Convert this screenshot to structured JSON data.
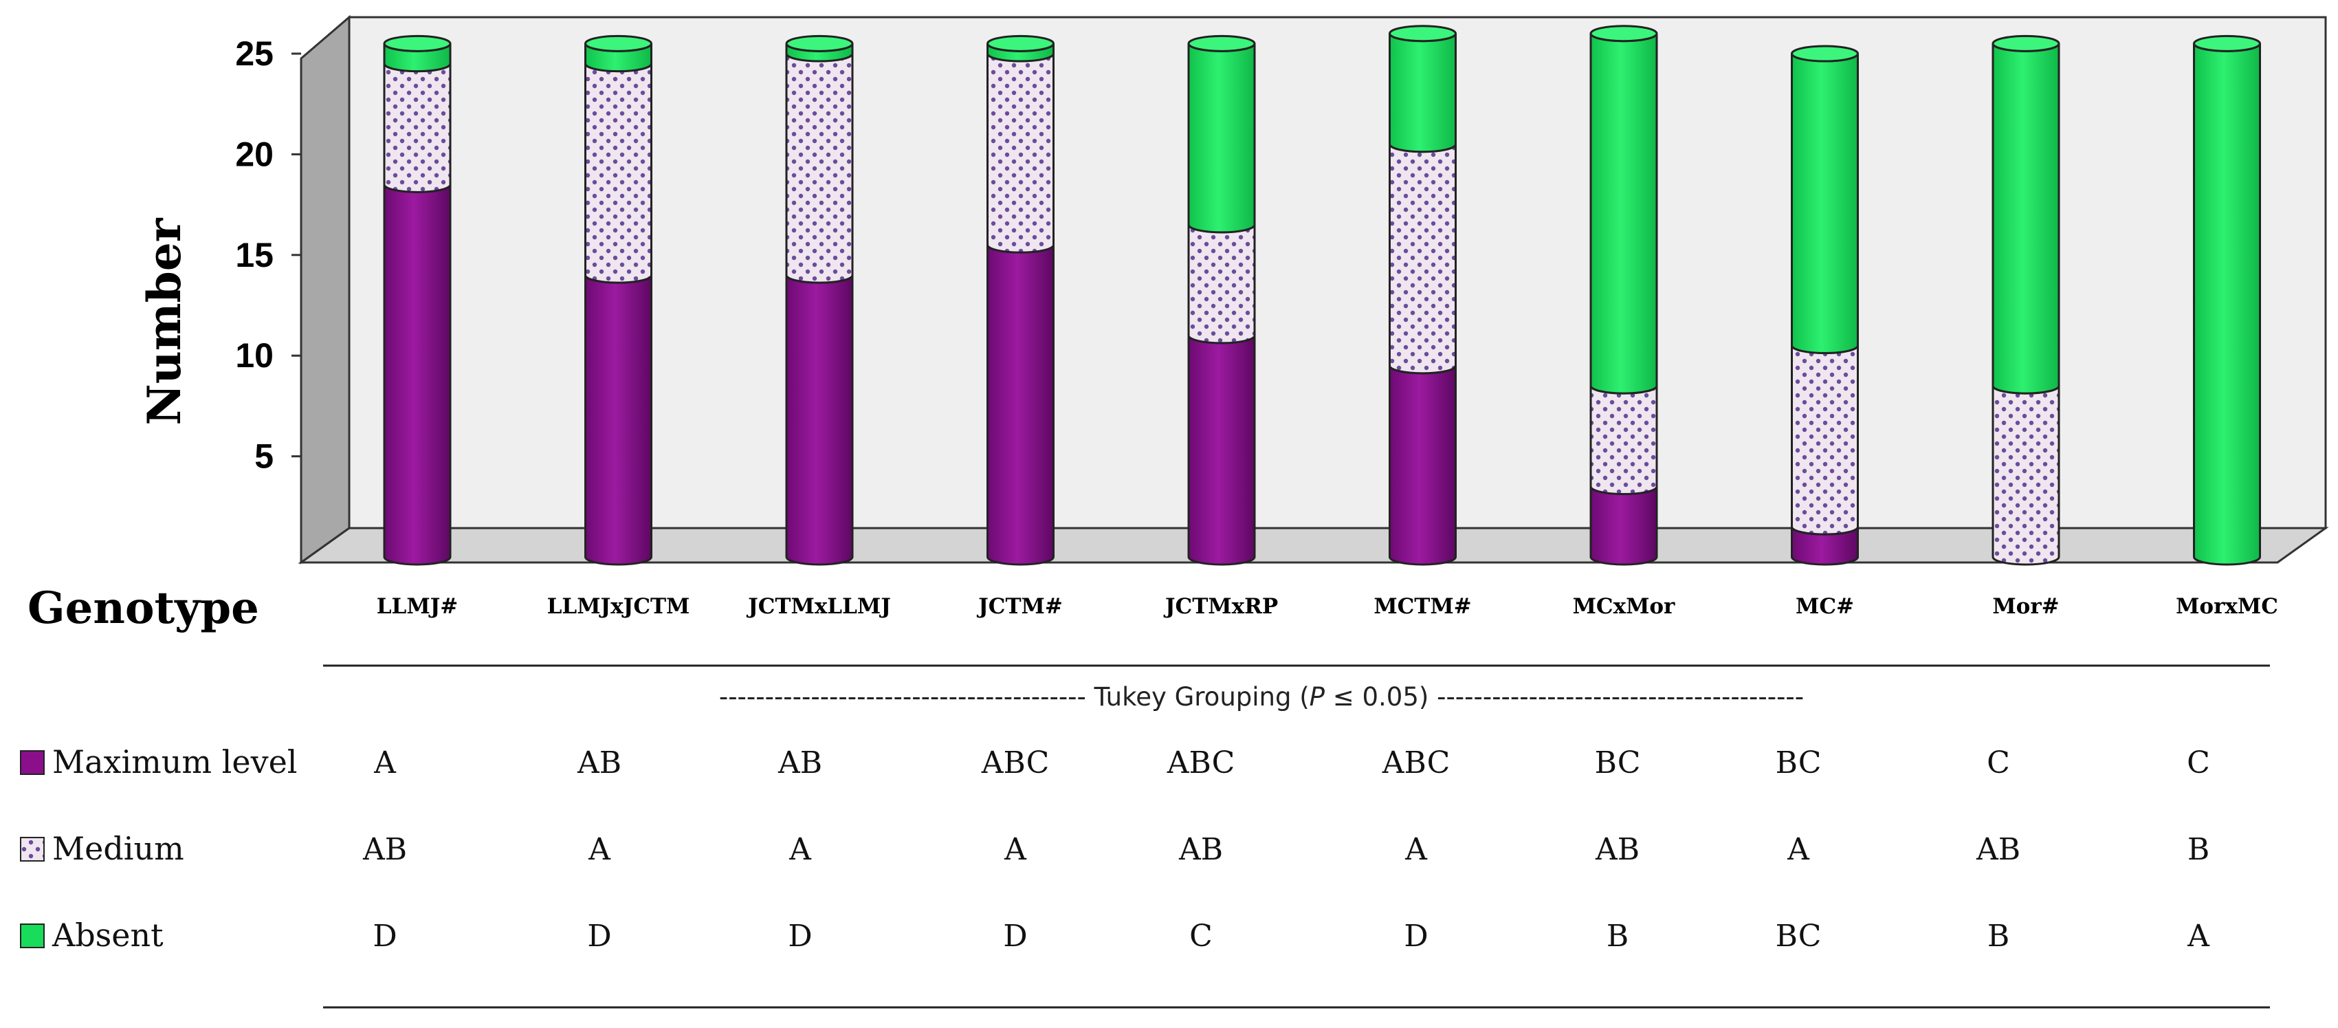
{
  "chart_data": {
    "type": "bar",
    "stacked": true,
    "ylabel": "Number",
    "xlabel": "Genotype",
    "ylim": [
      0,
      25
    ],
    "yticks": [
      "5",
      "10",
      "15",
      "20",
      "25"
    ],
    "categories": [
      "LLMJ#",
      "LLMJxJCTM",
      "JCTMxLLMJ",
      "JCTM#",
      "JCTMxRP",
      "MCTM#",
      "MCxMor",
      "MC#",
      "Mor#",
      "MorxMC"
    ],
    "series": [
      {
        "name": "Maximum level",
        "color": "#8b0f8b",
        "values": [
          18.5,
          14,
          14,
          15.5,
          11,
          9.5,
          3.5,
          1.5,
          0,
          0
        ]
      },
      {
        "name": "Medium",
        "color": "#efe6f0",
        "values": [
          6,
          10.5,
          11,
          9.5,
          5.5,
          11,
          5,
          9,
          8.5,
          0
        ]
      },
      {
        "name": "Absent",
        "color": "#18dc5a",
        "values": [
          1,
          1,
          0.5,
          0.5,
          9,
          5.5,
          17.5,
          14.5,
          17,
          25.5
        ]
      }
    ]
  },
  "tukey": {
    "title_prefix": "---------------------------------------- Tukey Grouping (",
    "title_p": "P",
    "title_suffix": " ≤ 0.05) ----------------------------------------",
    "rows": [
      {
        "label": "Maximum level",
        "groups": [
          "A",
          "AB",
          "AB",
          "ABC",
          "ABC",
          "ABC",
          "BC",
          "BC",
          "C",
          "C"
        ]
      },
      {
        "label": "Medium",
        "groups": [
          "AB",
          "A",
          "A",
          "A",
          "AB",
          "A",
          "AB",
          "A",
          "AB",
          "B"
        ]
      },
      {
        "label": "Absent",
        "groups": [
          "D",
          "D",
          "D",
          "D",
          "C",
          "D",
          "B",
          "BC",
          "B",
          "A"
        ]
      }
    ]
  },
  "colors": {
    "max_fill": "#8b0f8b",
    "medium_fill": "#efe6f0",
    "medium_dot": "#6b4c9a",
    "absent_fill": "#18dc5a",
    "wall": "#efefef",
    "side": "#a8a8a8"
  }
}
